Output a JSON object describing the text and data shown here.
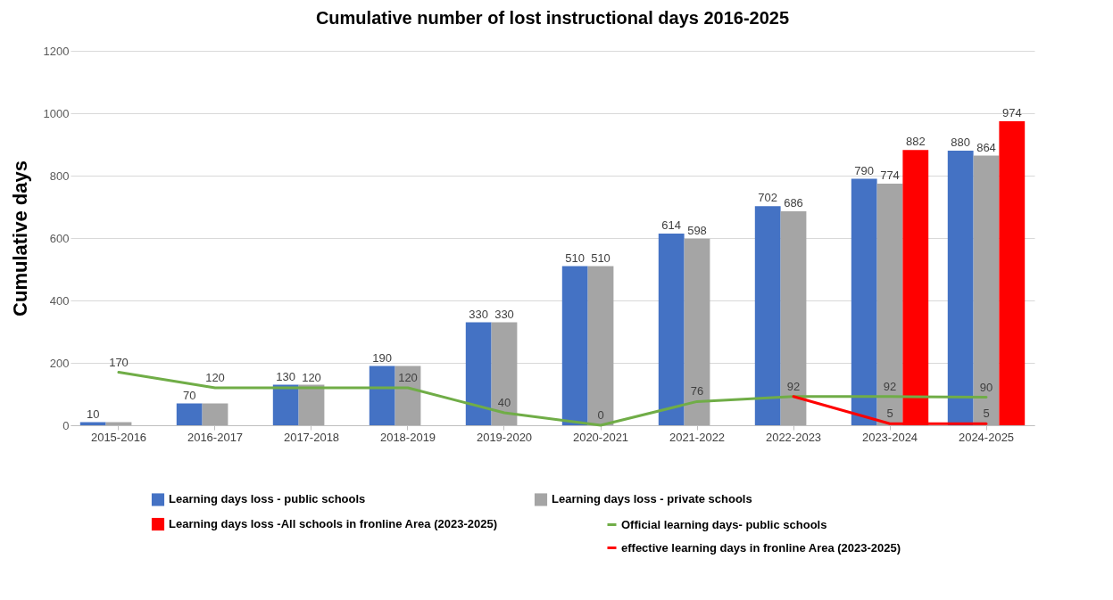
{
  "chart_data": {
    "type": "bar",
    "title": "Cumulative number of lost instructional days 2016-2025",
    "ylabel": "Cumulative days",
    "categories": [
      "2015-2016",
      "2016-2017",
      "2017-2018",
      "2018-2019",
      "2019-2020",
      "2020-2021",
      "2021-2022",
      "2022-2023",
      "2023-2024",
      "2024-2025"
    ],
    "series": [
      {
        "name": "Learning days loss - public schools",
        "color": "#4472c4",
        "values": [
          10,
          70,
          130,
          190,
          330,
          510,
          614,
          702,
          790,
          880
        ],
        "value_labels": [
          "10",
          "70",
          "130",
          "190",
          "330",
          "510",
          "614",
          "702",
          "790",
          "880"
        ]
      },
      {
        "name": "Learning days loss - private schools",
        "color": "#a5a5a5",
        "values": [
          10,
          70,
          130,
          190,
          330,
          510,
          598,
          686,
          774,
          864
        ],
        "value_labels": [
          null,
          null,
          null,
          null,
          "330",
          "510",
          "598",
          "686",
          "774",
          "864"
        ]
      },
      {
        "name": "Learning days loss -All schools in fronline Area (2023-2025)",
        "color": "#ff0000",
        "values": [
          null,
          null,
          null,
          null,
          null,
          null,
          null,
          null,
          882,
          974
        ],
        "value_labels": [
          null,
          null,
          null,
          null,
          null,
          null,
          null,
          null,
          "882",
          "974"
        ]
      },
      {
        "name": "Official learning days- public schools",
        "type": "line",
        "color": "#70ad47",
        "values": [
          170,
          120,
          120,
          120,
          40,
          0,
          76,
          92,
          92,
          90
        ],
        "value_labels": [
          "170",
          "120",
          "120",
          "120",
          "40",
          "0",
          "76",
          "92",
          "92",
          "90"
        ]
      },
      {
        "name": "effective learning days in fronline Area (2023-2025)",
        "type": "line",
        "color": "#ff0000",
        "values": [
          null,
          null,
          null,
          null,
          null,
          null,
          null,
          92,
          5,
          5
        ],
        "value_labels": [
          null,
          null,
          null,
          null,
          null,
          null,
          null,
          null,
          "5",
          "5"
        ]
      }
    ],
    "ylim": [
      0,
      1200
    ],
    "yticks": [
      0,
      200,
      400,
      600,
      800,
      1000,
      1200
    ],
    "grid": "y",
    "legend": "bottom"
  }
}
